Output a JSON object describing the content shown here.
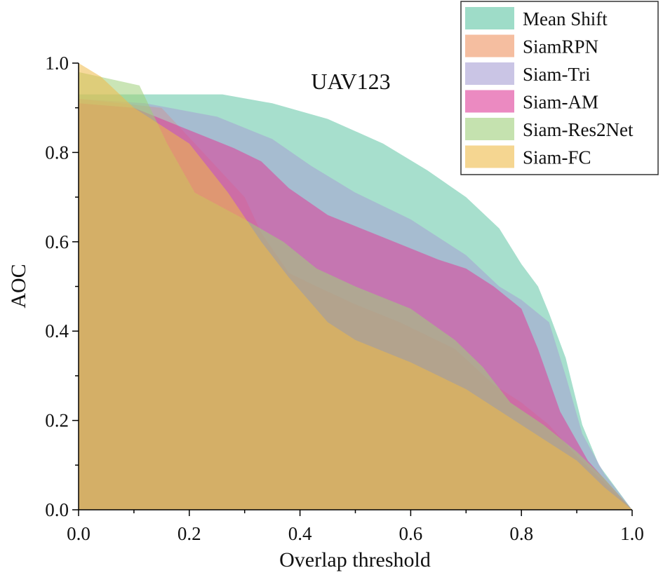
{
  "chart_data": {
    "type": "area",
    "title": "UAV123",
    "xlabel": "Overlap threshold",
    "ylabel": "AOC",
    "xlim": [
      0.0,
      1.0
    ],
    "ylim": [
      0.0,
      1.0
    ],
    "xticks": [
      "0.0",
      "0.2",
      "0.4",
      "0.6",
      "0.8",
      "1.0"
    ],
    "yticks": [
      "0.0",
      "0.2",
      "0.4",
      "0.6",
      "0.8",
      "1.0"
    ],
    "grid": false,
    "legend_position": "top-right",
    "fill_opacity": 0.55,
    "series": [
      {
        "name": "Mean Shift",
        "color": "#5ec4a4",
        "points": [
          [
            0.0,
            0.93
          ],
          [
            0.26,
            0.93
          ],
          [
            0.35,
            0.91
          ],
          [
            0.45,
            0.875
          ],
          [
            0.55,
            0.82
          ],
          [
            0.63,
            0.76
          ],
          [
            0.7,
            0.7
          ],
          [
            0.76,
            0.63
          ],
          [
            0.8,
            0.55
          ],
          [
            0.83,
            0.5
          ],
          [
            0.85,
            0.44
          ],
          [
            0.88,
            0.34
          ],
          [
            0.91,
            0.19
          ],
          [
            0.94,
            0.1
          ],
          [
            1.0,
            0.0
          ]
        ]
      },
      {
        "name": "SiamRPN",
        "color": "#ee9360",
        "points": [
          [
            0.0,
            0.92
          ],
          [
            0.15,
            0.9
          ],
          [
            0.3,
            0.7
          ],
          [
            0.33,
            0.62
          ],
          [
            0.38,
            0.53
          ],
          [
            0.43,
            0.5
          ],
          [
            0.5,
            0.46
          ],
          [
            0.58,
            0.42
          ],
          [
            0.68,
            0.36
          ],
          [
            0.75,
            0.28
          ],
          [
            0.8,
            0.24
          ],
          [
            0.85,
            0.19
          ],
          [
            0.9,
            0.12
          ],
          [
            0.95,
            0.06
          ],
          [
            1.0,
            0.0
          ]
        ]
      },
      {
        "name": "Siam-Tri",
        "color": "#a69ed4",
        "points": [
          [
            0.0,
            0.92
          ],
          [
            0.12,
            0.91
          ],
          [
            0.25,
            0.88
          ],
          [
            0.35,
            0.83
          ],
          [
            0.42,
            0.77
          ],
          [
            0.5,
            0.71
          ],
          [
            0.6,
            0.65
          ],
          [
            0.7,
            0.57
          ],
          [
            0.76,
            0.5
          ],
          [
            0.8,
            0.47
          ],
          [
            0.85,
            0.42
          ],
          [
            0.88,
            0.3
          ],
          [
            0.91,
            0.17
          ],
          [
            0.95,
            0.08
          ],
          [
            1.0,
            0.0
          ]
        ]
      },
      {
        "name": "Siam-AM",
        "color": "#de3c98",
        "points": [
          [
            0.0,
            0.91
          ],
          [
            0.1,
            0.9
          ],
          [
            0.2,
            0.85
          ],
          [
            0.28,
            0.81
          ],
          [
            0.33,
            0.78
          ],
          [
            0.38,
            0.72
          ],
          [
            0.45,
            0.66
          ],
          [
            0.55,
            0.61
          ],
          [
            0.65,
            0.56
          ],
          [
            0.7,
            0.54
          ],
          [
            0.75,
            0.5
          ],
          [
            0.8,
            0.45
          ],
          [
            0.83,
            0.36
          ],
          [
            0.87,
            0.22
          ],
          [
            0.92,
            0.11
          ],
          [
            1.0,
            0.0
          ]
        ]
      },
      {
        "name": "Siam-Res2Net",
        "color": "#9fcf7a",
        "points": [
          [
            0.0,
            0.98
          ],
          [
            0.11,
            0.95
          ],
          [
            0.16,
            0.82
          ],
          [
            0.21,
            0.71
          ],
          [
            0.3,
            0.65
          ],
          [
            0.37,
            0.6
          ],
          [
            0.43,
            0.54
          ],
          [
            0.5,
            0.5
          ],
          [
            0.6,
            0.45
          ],
          [
            0.68,
            0.38
          ],
          [
            0.73,
            0.32
          ],
          [
            0.78,
            0.24
          ],
          [
            0.84,
            0.19
          ],
          [
            0.9,
            0.13
          ],
          [
            0.95,
            0.07
          ],
          [
            1.0,
            0.0
          ]
        ]
      },
      {
        "name": "Siam-FC",
        "color": "#eeba48",
        "points": [
          [
            0.0,
            1.0
          ],
          [
            0.04,
            0.97
          ],
          [
            0.1,
            0.9
          ],
          [
            0.2,
            0.82
          ],
          [
            0.27,
            0.71
          ],
          [
            0.33,
            0.6
          ],
          [
            0.38,
            0.52
          ],
          [
            0.45,
            0.42
          ],
          [
            0.5,
            0.38
          ],
          [
            0.6,
            0.33
          ],
          [
            0.7,
            0.27
          ],
          [
            0.8,
            0.19
          ],
          [
            0.9,
            0.11
          ],
          [
            0.95,
            0.05
          ],
          [
            1.0,
            0.0
          ]
        ]
      }
    ]
  }
}
